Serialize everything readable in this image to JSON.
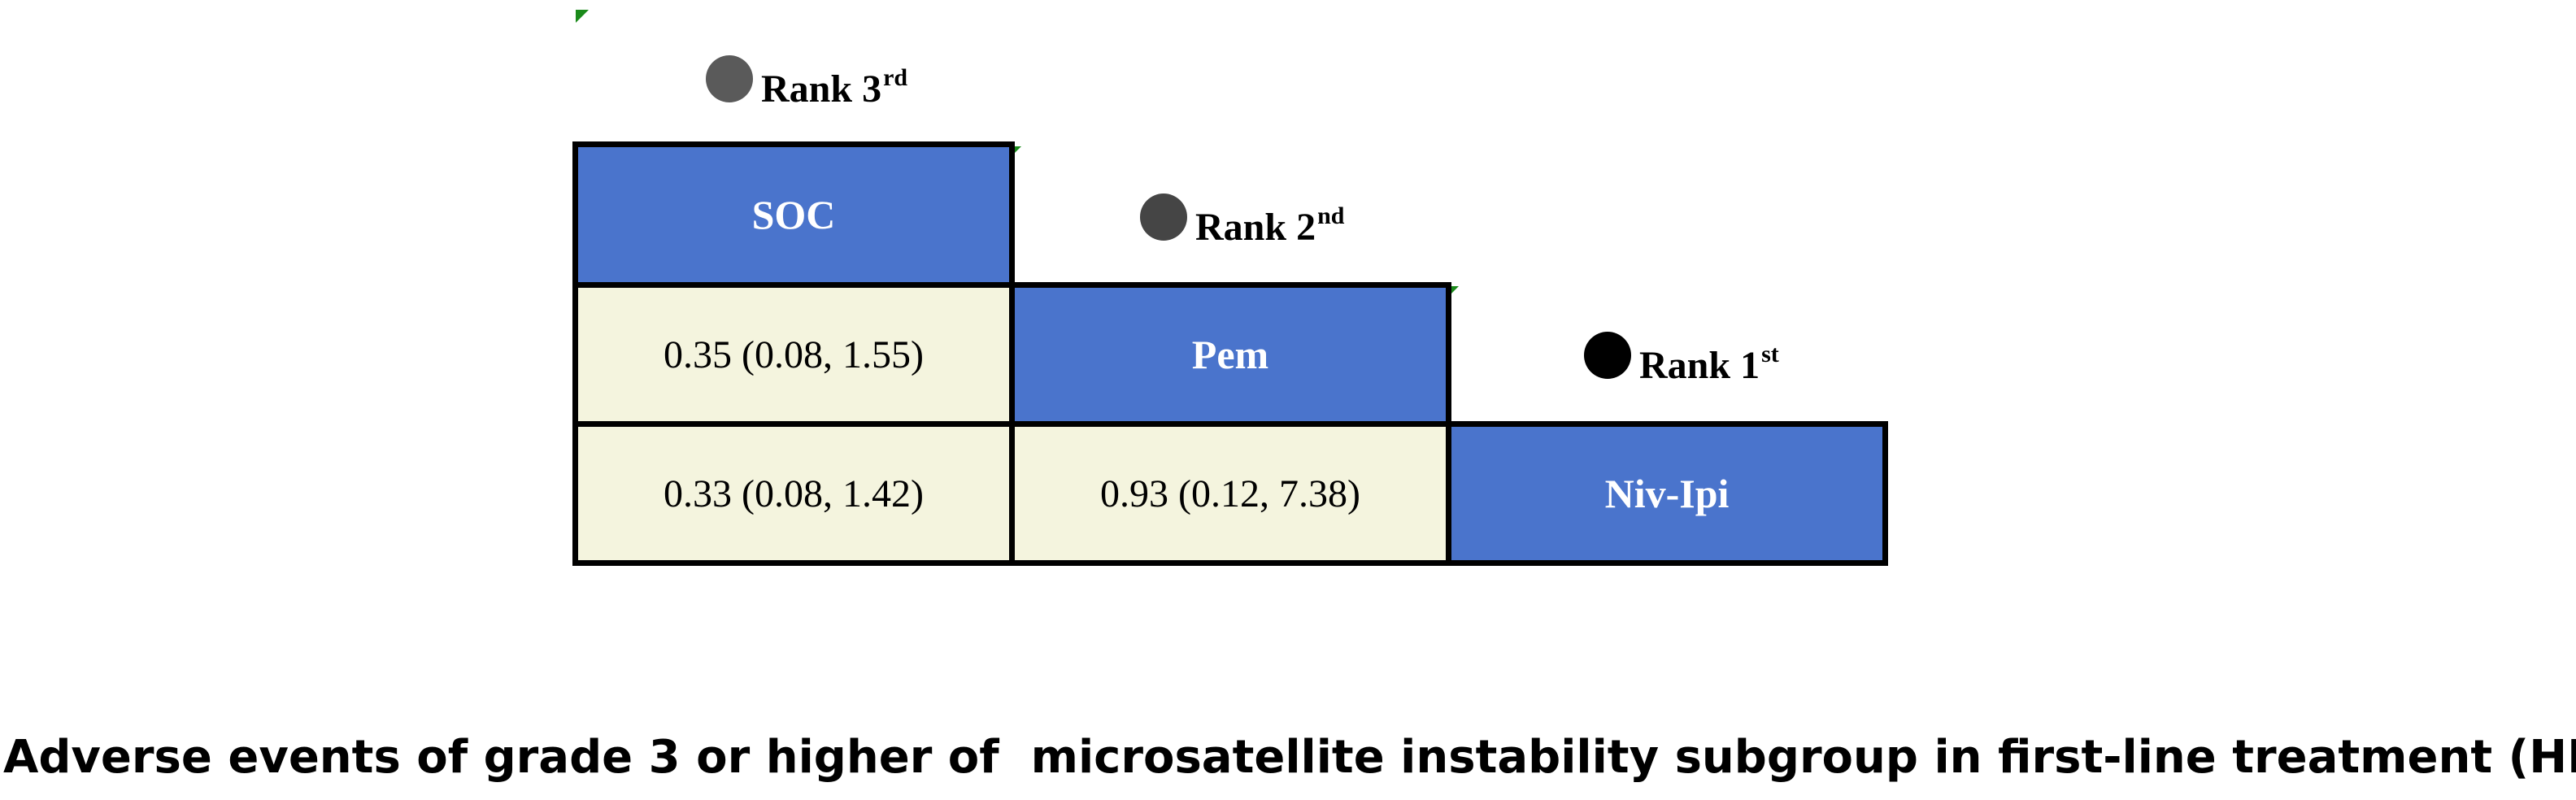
{
  "colors": {
    "header_fill": "#4a74cc",
    "value_fill": "#f4f4de",
    "border": "#000000",
    "rank_dots": [
      "#5a5a5a",
      "#454545",
      "#000000"
    ]
  },
  "ranks": [
    {
      "word": "Rank",
      "number": "3",
      "suffix": "rd"
    },
    {
      "word": "Rank",
      "number": "2",
      "suffix": "nd"
    },
    {
      "word": "Rank",
      "number": "1",
      "suffix": "st"
    }
  ],
  "treatments": [
    "SOC",
    "Pem",
    "Niv-Ipi"
  ],
  "comparisons": {
    "pem_vs_soc": "0.35 (0.08, 1.55)",
    "nivipi_vs_soc": "0.33 (0.08, 1.42)",
    "nivipi_vs_pem": "0.93 (0.12, 7.38)"
  },
  "caption": "Adverse events of grade 3 or higher of  microsatellite instability subgroup in first-line treatment (HR)"
}
